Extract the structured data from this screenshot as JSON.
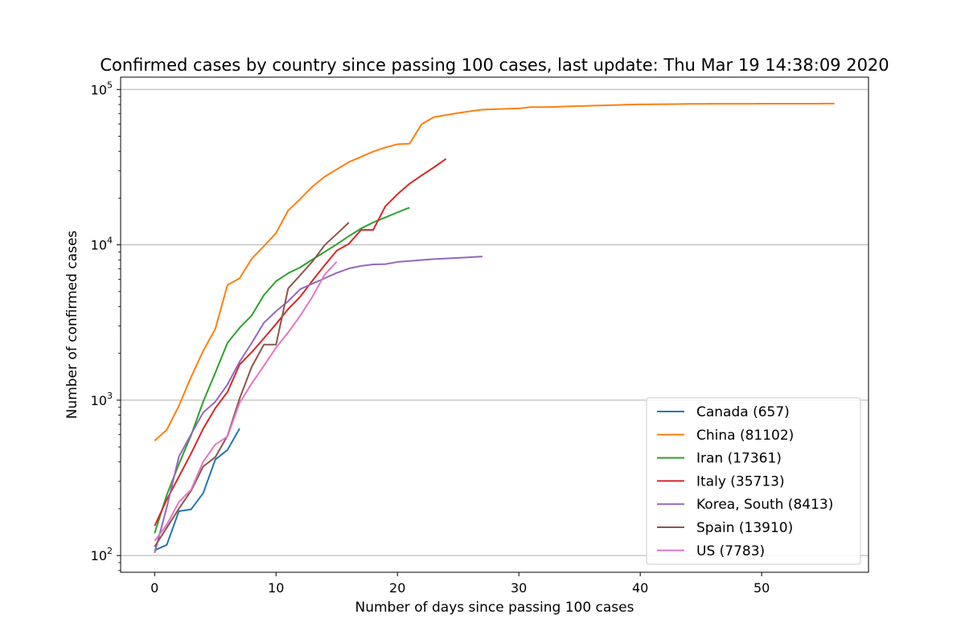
{
  "chart_data": {
    "type": "line",
    "title": "Confirmed cases by country since passing 100 cases, last update: Thu Mar 19 14:38:09 2020",
    "xlabel": "Number of days since passing 100 cases",
    "ylabel": "Number of confirmed cases",
    "yscale": "log",
    "xlim": [
      -2.8,
      58.8
    ],
    "ylim": [
      78,
      120000
    ],
    "x_ticks": [
      0,
      10,
      20,
      30,
      40,
      50
    ],
    "y_ticks": [
      {
        "value": 100,
        "base": "10",
        "exp": "2"
      },
      {
        "value": 1000,
        "base": "10",
        "exp": "3"
      },
      {
        "value": 10000,
        "base": "10",
        "exp": "4"
      },
      {
        "value": 100000,
        "base": "10",
        "exp": "5"
      }
    ],
    "grid": "y-major",
    "legend_position": "lower-right",
    "series": [
      {
        "name": "Canada (657)",
        "color": "#1f77b4",
        "x": [
          0,
          1,
          2,
          3,
          4,
          5,
          6,
          7
        ],
        "y": [
          108,
          117,
          193,
          198,
          252,
          415,
          478,
          657
        ]
      },
      {
        "name": "China (81102)",
        "color": "#ff7f0e",
        "x": [
          0,
          1,
          2,
          3,
          4,
          5,
          6,
          7,
          8,
          9,
          10,
          11,
          12,
          13,
          14,
          15,
          16,
          17,
          18,
          19,
          20,
          21,
          22,
          23,
          24,
          25,
          26,
          27,
          28,
          29,
          30,
          31,
          32,
          33,
          34,
          35,
          36,
          37,
          38,
          39,
          40,
          41,
          42,
          43,
          44,
          45,
          46,
          47,
          48,
          49,
          50,
          51,
          52,
          53,
          54,
          55,
          56
        ],
        "y": [
          548,
          643,
          920,
          1406,
          2075,
          2877,
          5509,
          6087,
          8141,
          9802,
          11891,
          16630,
          19716,
          23707,
          27440,
          30587,
          34110,
          36814,
          39829,
          42354,
          44386,
          44759,
          59895,
          66358,
          68413,
          70513,
          72434,
          74211,
          74619,
          75077,
          75550,
          77001,
          77022,
          77241,
          77754,
          78166,
          78600,
          78928,
          79356,
          79932,
          80136,
          80261,
          80386,
          80537,
          80690,
          80770,
          80823,
          80860,
          80887,
          80921,
          80932,
          80945,
          80977,
          81003,
          81033,
          81058,
          81102
        ]
      },
      {
        "name": "Iran (17361)",
        "color": "#2ca02c",
        "x": [
          0,
          1,
          2,
          3,
          4,
          5,
          6,
          7,
          8,
          9,
          10,
          11,
          12,
          13,
          14,
          15,
          16,
          17,
          18,
          19,
          20,
          21
        ],
        "y": [
          139,
          245,
          388,
          593,
          978,
          1501,
          2336,
          2922,
          3513,
          4747,
          5823,
          6566,
          7161,
          8042,
          9000,
          10075,
          11364,
          12729,
          13938,
          14991,
          16169,
          17361
        ]
      },
      {
        "name": "Italy (35713)",
        "color": "#d62728",
        "x": [
          0,
          1,
          2,
          3,
          4,
          5,
          6,
          7,
          8,
          9,
          10,
          11,
          12,
          13,
          14,
          15,
          16,
          17,
          18,
          19,
          20,
          21,
          22,
          23,
          24
        ],
        "y": [
          155,
          229,
          322,
          453,
          655,
          888,
          1128,
          1694,
          2036,
          2502,
          3089,
          3858,
          4636,
          5883,
          7375,
          9172,
          10149,
          12462,
          12462,
          17660,
          21157,
          24747,
          27980,
          31506,
          35713
        ]
      },
      {
        "name": "Korea, South (8413)",
        "color": "#9467bd",
        "x": [
          0,
          1,
          2,
          3,
          4,
          5,
          6,
          7,
          8,
          9,
          10,
          11,
          12,
          13,
          14,
          15,
          16,
          17,
          18,
          19,
          20,
          21,
          22,
          23,
          24,
          25,
          26,
          27
        ],
        "y": [
          104,
          204,
          433,
          602,
          833,
          977,
          1261,
          1766,
          2337,
          3150,
          3736,
          4335,
          5186,
          5621,
          6088,
          6593,
          7041,
          7314,
          7478,
          7513,
          7755,
          7869,
          7979,
          8086,
          8162,
          8236,
          8320,
          8413
        ]
      },
      {
        "name": "Spain (13910)",
        "color": "#8c564b",
        "x": [
          0,
          1,
          2,
          3,
          4,
          5,
          6,
          7,
          8,
          9,
          10,
          11,
          12,
          13,
          14,
          15,
          16
        ],
        "y": [
          114,
          151,
          200,
          261,
          374,
          430,
          589,
          1024,
          1639,
          2277,
          2277,
          5232,
          6391,
          7798,
          9942,
          11748,
          13910
        ]
      },
      {
        "name": "US (7783)",
        "color": "#e377c2",
        "x": [
          0,
          1,
          2,
          3,
          4,
          5,
          6,
          7,
          8,
          9,
          10,
          11,
          12,
          13,
          14,
          15
        ],
        "y": [
          124,
          158,
          221,
          265,
          402,
          518,
          583,
          959,
          1281,
          1663,
          2179,
          2727,
          3499,
          4632,
          6421,
          7783
        ]
      }
    ]
  }
}
